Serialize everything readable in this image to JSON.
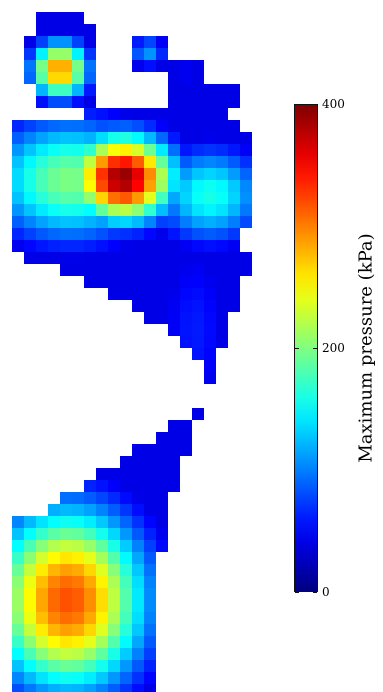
{
  "chart_data": {
    "type": "heatmap",
    "title": "",
    "colorbar": {
      "label": "Maximum pressure (kPa)",
      "min": 0,
      "max": 400,
      "ticks": [
        {
          "value": 0,
          "label": "0"
        },
        {
          "value": 200,
          "label": "200"
        },
        {
          "value": 400,
          "label": "400"
        }
      ],
      "colormap": "jet"
    },
    "grid_on": false,
    "regions": [
      {
        "name": "big toe",
        "peak": 300
      },
      {
        "name": "second toe",
        "peak": 110
      },
      {
        "name": "lesser toes",
        "peak": 50
      },
      {
        "name": "forefoot (metatarsal heads)",
        "peak": 395
      },
      {
        "name": "lateral forefoot",
        "peak": 160
      },
      {
        "name": "midfoot",
        "peak": 60
      },
      {
        "name": "heel",
        "peak": 320
      }
    ]
  }
}
